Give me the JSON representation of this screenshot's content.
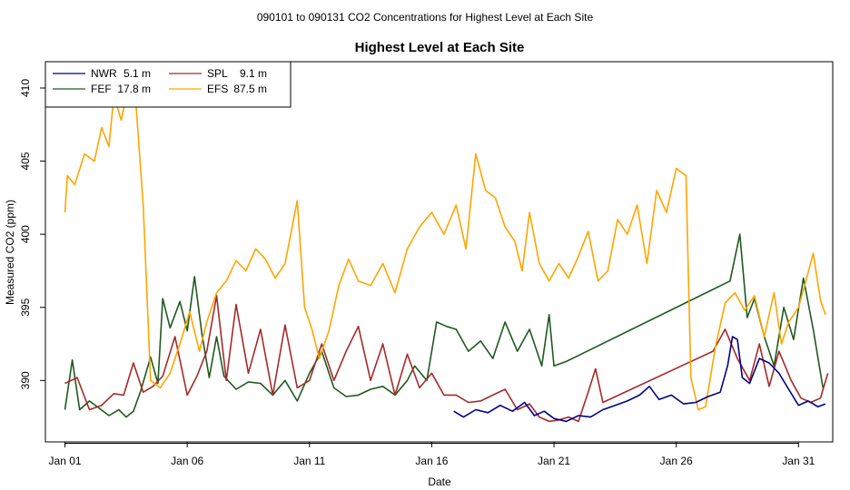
{
  "chart_data": {
    "type": "line",
    "suptitle": "090101  to  090131 CO2 Concentrations for Highest Level at Each Site",
    "title": "Highest Level at Each Site",
    "xlabel": "Date",
    "ylabel": "Measured CO2 (ppm)",
    "xlim": [
      -0.8,
      31.4
    ],
    "ylim": [
      385.8,
      411.8
    ],
    "x_ticks": [
      {
        "label": "Jan 01",
        "value": 0
      },
      {
        "label": "Jan 06",
        "value": 5
      },
      {
        "label": "Jan 11",
        "value": 10
      },
      {
        "label": "Jan 16",
        "value": 15
      },
      {
        "label": "Jan 21",
        "value": 20
      },
      {
        "label": "Jan 26",
        "value": 25
      },
      {
        "label": "Jan 31",
        "value": 30
      }
    ],
    "y_ticks": [
      390,
      395,
      400,
      405,
      410
    ],
    "legend_position": "top-left",
    "series": [
      {
        "name": "NWR",
        "height": "5.1 m",
        "color": "#00008b",
        "points": [
          [
            15.9,
            387.9
          ],
          [
            16.3,
            387.5
          ],
          [
            16.8,
            388.0
          ],
          [
            17.3,
            387.8
          ],
          [
            17.8,
            388.3
          ],
          [
            18.3,
            387.9
          ],
          [
            18.8,
            388.5
          ],
          [
            19.2,
            387.6
          ],
          [
            19.6,
            387.9
          ],
          [
            20.0,
            387.4
          ],
          [
            20.5,
            387.2
          ],
          [
            21.0,
            387.6
          ],
          [
            21.5,
            387.5
          ],
          [
            22.0,
            388.0
          ],
          [
            22.5,
            388.3
          ],
          [
            23.0,
            388.6
          ],
          [
            23.5,
            389.0
          ],
          [
            23.9,
            389.6
          ],
          [
            24.3,
            388.7
          ],
          [
            24.8,
            389.0
          ],
          [
            25.3,
            388.4
          ],
          [
            25.8,
            388.5
          ],
          [
            26.3,
            388.9
          ],
          [
            26.8,
            389.2
          ],
          [
            27.1,
            391.0
          ],
          [
            27.3,
            393.0
          ],
          [
            27.5,
            392.8
          ],
          [
            27.7,
            390.2
          ],
          [
            28.0,
            389.8
          ],
          [
            28.4,
            391.5
          ],
          [
            28.8,
            391.2
          ],
          [
            29.2,
            390.5
          ],
          [
            29.6,
            389.4
          ],
          [
            30.0,
            388.3
          ],
          [
            30.4,
            388.6
          ],
          [
            30.8,
            388.2
          ],
          [
            31.1,
            388.4
          ]
        ]
      },
      {
        "name": "FEF",
        "height": "17.8 m",
        "color": "#1e5a1e",
        "points": [
          [
            0.0,
            388.0
          ],
          [
            0.3,
            391.4
          ],
          [
            0.6,
            388.0
          ],
          [
            1.0,
            388.6
          ],
          [
            1.4,
            388.1
          ],
          [
            1.8,
            387.6
          ],
          [
            2.2,
            388.0
          ],
          [
            2.5,
            387.5
          ],
          [
            2.8,
            387.9
          ],
          [
            3.1,
            389.3
          ],
          [
            3.5,
            391.6
          ],
          [
            3.8,
            389.8
          ],
          [
            4.0,
            395.6
          ],
          [
            4.3,
            393.6
          ],
          [
            4.7,
            395.4
          ],
          [
            5.0,
            393.4
          ],
          [
            5.3,
            397.1
          ],
          [
            5.6,
            393.2
          ],
          [
            5.9,
            390.2
          ],
          [
            6.2,
            393.0
          ],
          [
            6.5,
            390.3
          ],
          [
            7.0,
            389.4
          ],
          [
            7.5,
            389.9
          ],
          [
            8.0,
            389.8
          ],
          [
            8.5,
            389.0
          ],
          [
            9.0,
            390.0
          ],
          [
            9.5,
            388.6
          ],
          [
            10.0,
            390.5
          ],
          [
            10.5,
            392.0
          ],
          [
            11.0,
            389.5
          ],
          [
            11.5,
            388.9
          ],
          [
            12.0,
            389.0
          ],
          [
            12.5,
            389.4
          ],
          [
            13.0,
            389.6
          ],
          [
            13.5,
            389.0
          ],
          [
            14.0,
            390.0
          ],
          [
            14.3,
            391.0
          ],
          [
            14.8,
            390.0
          ],
          [
            15.2,
            394.0
          ],
          [
            15.6,
            393.7
          ],
          [
            16.0,
            393.5
          ],
          [
            16.5,
            392.0
          ],
          [
            17.0,
            392.7
          ],
          [
            17.5,
            391.5
          ],
          [
            18.0,
            394.0
          ],
          [
            18.5,
            392.0
          ],
          [
            19.0,
            393.5
          ],
          [
            19.5,
            391.0
          ],
          [
            19.8,
            394.5
          ],
          [
            20.0,
            391.0
          ],
          [
            20.5,
            391.3
          ],
          [
            27.2,
            396.8
          ],
          [
            27.6,
            400.0
          ],
          [
            27.9,
            394.3
          ],
          [
            28.2,
            395.6
          ],
          [
            28.6,
            393.0
          ],
          [
            29.0,
            391.0
          ],
          [
            29.4,
            395.0
          ],
          [
            29.8,
            392.8
          ],
          [
            30.2,
            397.0
          ],
          [
            30.6,
            393.5
          ],
          [
            31.0,
            389.5
          ]
        ]
      },
      {
        "name": "SPL",
        "height": "9.1 m",
        "color": "#a52a2a",
        "points": [
          [
            0.0,
            389.8
          ],
          [
            0.5,
            390.2
          ],
          [
            1.0,
            388.0
          ],
          [
            1.5,
            388.3
          ],
          [
            2.0,
            389.1
          ],
          [
            2.4,
            389.0
          ],
          [
            2.8,
            391.2
          ],
          [
            3.2,
            389.2
          ],
          [
            3.6,
            389.6
          ],
          [
            4.0,
            390.3
          ],
          [
            4.5,
            393.0
          ],
          [
            5.0,
            389.0
          ],
          [
            5.4,
            390.3
          ],
          [
            5.8,
            392.0
          ],
          [
            6.2,
            395.8
          ],
          [
            6.6,
            390.0
          ],
          [
            7.0,
            395.2
          ],
          [
            7.5,
            390.5
          ],
          [
            8.0,
            393.5
          ],
          [
            8.5,
            389.0
          ],
          [
            9.0,
            393.8
          ],
          [
            9.5,
            389.5
          ],
          [
            10.0,
            390.0
          ],
          [
            10.5,
            392.5
          ],
          [
            11.0,
            390.0
          ],
          [
            11.5,
            392.0
          ],
          [
            12.0,
            393.7
          ],
          [
            12.5,
            390.0
          ],
          [
            13.0,
            392.5
          ],
          [
            13.5,
            389.0
          ],
          [
            14.0,
            391.8
          ],
          [
            14.5,
            389.5
          ],
          [
            15.0,
            390.5
          ],
          [
            15.5,
            389.0
          ],
          [
            16.0,
            389.0
          ],
          [
            16.5,
            388.5
          ],
          [
            17.0,
            388.6
          ],
          [
            17.5,
            389.0
          ],
          [
            18.0,
            389.4
          ],
          [
            18.5,
            388.0
          ],
          [
            19.0,
            388.4
          ],
          [
            19.4,
            387.5
          ],
          [
            19.8,
            387.2
          ],
          [
            20.2,
            387.3
          ],
          [
            20.6,
            387.5
          ],
          [
            21.0,
            387.2
          ],
          [
            21.4,
            389.2
          ],
          [
            21.7,
            390.8
          ],
          [
            22.0,
            388.5
          ],
          [
            26.5,
            392.0
          ],
          [
            27.0,
            393.5
          ],
          [
            27.5,
            391.5
          ],
          [
            28.0,
            390.0
          ],
          [
            28.4,
            392.5
          ],
          [
            28.8,
            389.6
          ],
          [
            29.2,
            392.0
          ],
          [
            29.7,
            390.0
          ],
          [
            30.1,
            388.8
          ],
          [
            30.5,
            388.5
          ],
          [
            30.9,
            388.8
          ],
          [
            31.2,
            390.5
          ]
        ]
      },
      {
        "name": "EFS",
        "height": "87.5 m",
        "color": "#ffa500",
        "points": [
          [
            0.0,
            401.5
          ],
          [
            0.1,
            404.0
          ],
          [
            0.4,
            403.4
          ],
          [
            0.8,
            405.5
          ],
          [
            1.2,
            405.0
          ],
          [
            1.5,
            407.3
          ],
          [
            1.8,
            406.0
          ],
          [
            2.0,
            409.5
          ],
          [
            2.3,
            407.8
          ],
          [
            2.6,
            410.2
          ],
          [
            2.9,
            409.0
          ],
          [
            3.2,
            402.0
          ],
          [
            3.5,
            390.0
          ],
          [
            3.9,
            389.5
          ],
          [
            4.3,
            390.5
          ],
          [
            4.7,
            392.5
          ],
          [
            5.1,
            394.7
          ],
          [
            5.5,
            392.0
          ],
          [
            5.8,
            394.0
          ],
          [
            6.2,
            396.0
          ],
          [
            6.6,
            396.8
          ],
          [
            7.0,
            398.2
          ],
          [
            7.4,
            397.5
          ],
          [
            7.8,
            399.0
          ],
          [
            8.2,
            398.3
          ],
          [
            8.6,
            397.0
          ],
          [
            9.0,
            398.0
          ],
          [
            9.5,
            402.3
          ],
          [
            9.8,
            395.0
          ],
          [
            10.1,
            393.5
          ],
          [
            10.4,
            391.5
          ],
          [
            10.8,
            393.4
          ],
          [
            11.2,
            396.5
          ],
          [
            11.6,
            398.3
          ],
          [
            12.0,
            396.8
          ],
          [
            12.5,
            396.5
          ],
          [
            13.0,
            398.0
          ],
          [
            13.5,
            396.0
          ],
          [
            14.0,
            399.0
          ],
          [
            14.5,
            400.5
          ],
          [
            15.0,
            401.5
          ],
          [
            15.5,
            400.0
          ],
          [
            16.0,
            402.0
          ],
          [
            16.4,
            399.0
          ],
          [
            16.8,
            405.5
          ],
          [
            17.2,
            403.0
          ],
          [
            17.6,
            402.5
          ],
          [
            18.0,
            400.5
          ],
          [
            18.4,
            399.5
          ],
          [
            18.7,
            397.5
          ],
          [
            19.0,
            401.5
          ],
          [
            19.4,
            398.0
          ],
          [
            19.8,
            396.8
          ],
          [
            20.2,
            398.0
          ],
          [
            20.6,
            397.0
          ],
          [
            21.0,
            398.5
          ],
          [
            21.4,
            400.2
          ],
          [
            21.8,
            396.8
          ],
          [
            22.2,
            397.5
          ],
          [
            22.6,
            401.0
          ],
          [
            23.0,
            400.0
          ],
          [
            23.4,
            402.0
          ],
          [
            23.8,
            398.0
          ],
          [
            24.2,
            403.0
          ],
          [
            24.6,
            401.5
          ],
          [
            25.0,
            404.5
          ],
          [
            25.4,
            404.0
          ],
          [
            25.6,
            390.2
          ],
          [
            25.9,
            388.0
          ],
          [
            26.2,
            388.2
          ],
          [
            26.6,
            392.3
          ],
          [
            27.0,
            395.3
          ],
          [
            27.4,
            396.0
          ],
          [
            27.8,
            394.8
          ],
          [
            28.2,
            395.8
          ],
          [
            28.6,
            393.0
          ],
          [
            29.0,
            396.0
          ],
          [
            29.3,
            392.5
          ],
          [
            29.6,
            394.0
          ],
          [
            30.0,
            395.0
          ],
          [
            30.3,
            396.8
          ],
          [
            30.6,
            398.7
          ],
          [
            30.9,
            395.5
          ],
          [
            31.1,
            394.5
          ]
        ]
      }
    ]
  }
}
